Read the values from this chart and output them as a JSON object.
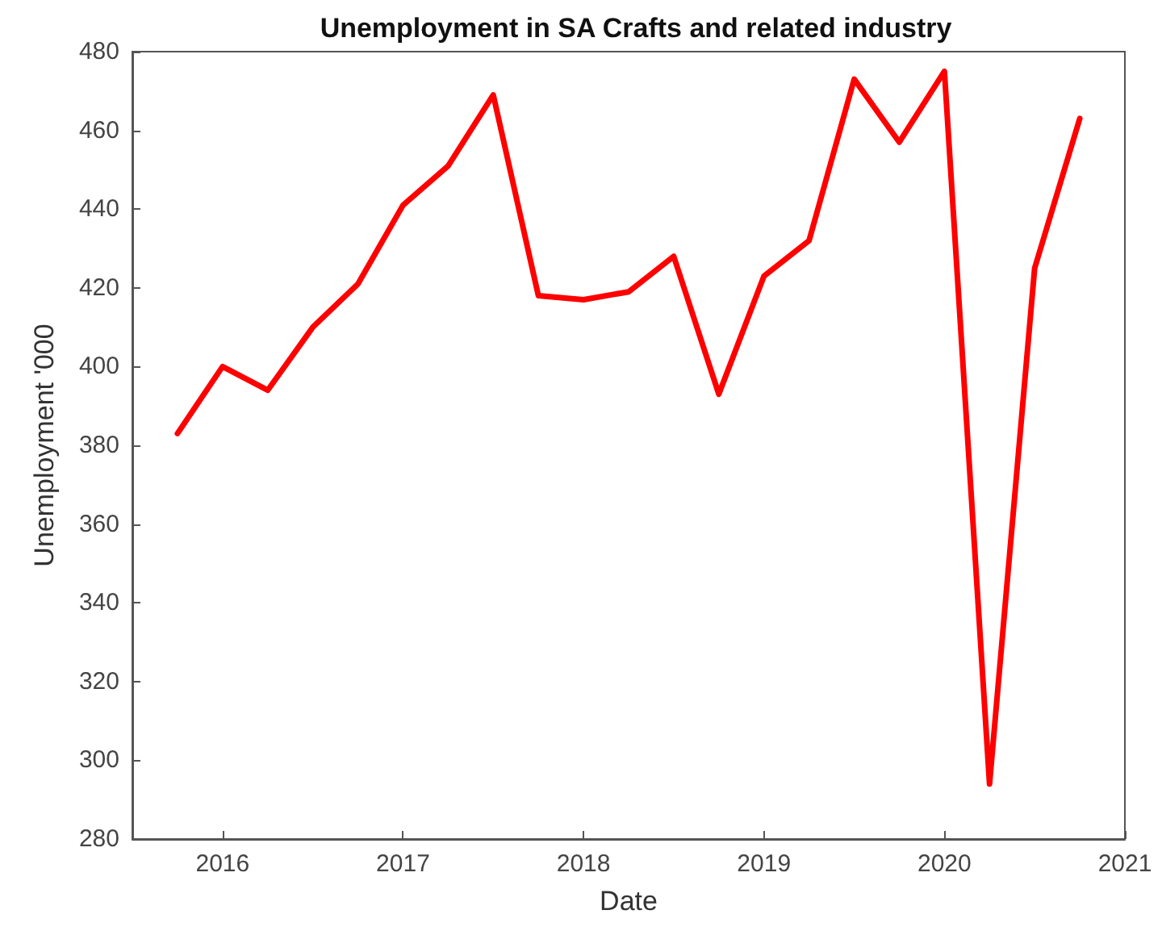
{
  "chart_data": {
    "type": "line",
    "title": "Unemployment in SA Crafts and related industry",
    "xlabel": "Date",
    "ylabel": "Unemployment '000",
    "x": [
      2015.75,
      2016,
      2016.25,
      2016.5,
      2016.75,
      2017,
      2017.25,
      2017.5,
      2017.75,
      2018,
      2018.25,
      2018.5,
      2018.75,
      2019,
      2019.25,
      2019.5,
      2019.75,
      2020,
      2020.25,
      2020.5,
      2020.75
    ],
    "series": [
      {
        "color": "#ff0000",
        "values": [
          383,
          400,
          394,
          410,
          421,
          441,
          451,
          469,
          418,
          417,
          419,
          428,
          393,
          423,
          432,
          473,
          457,
          475,
          294,
          425,
          463
        ]
      }
    ],
    "xlim": [
      2015.5,
      2021
    ],
    "xticks": [
      2016,
      2017,
      2018,
      2019,
      2020,
      2021
    ],
    "ylim": [
      280,
      480
    ],
    "yticks": [
      280,
      300,
      320,
      340,
      360,
      380,
      400,
      420,
      440,
      460,
      480
    ],
    "grid": false,
    "marker": "none",
    "line_style": "solid"
  }
}
